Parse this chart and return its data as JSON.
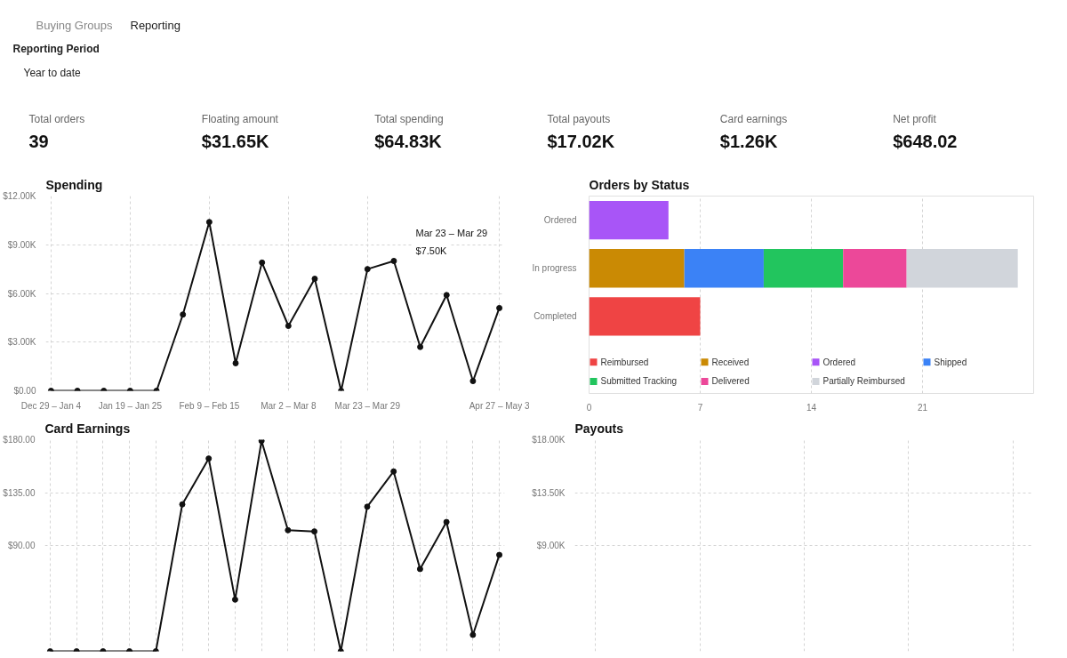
{
  "chart_data": [
    {
      "type": "other",
      "annotations": [
        "Buying Groups",
        "Reporting",
        "Reporting Period",
        "Year to date"
      ],
      "categories": [
        "Total orders",
        "Floating amount",
        "Total spending",
        "Total payouts",
        "Card earnings",
        "Net profit"
      ],
      "value_labels": [
        "39",
        "$31.65K",
        "$64.83K",
        "$17.02K",
        "$1.26K",
        "$648.02"
      ]
    },
    {
      "type": "line",
      "title": "Spending",
      "color": "#111111",
      "marker": "circle",
      "grid": true,
      "categories": [
        "Dec 29 – Jan 4",
        null,
        null,
        "Jan 19 – Jan 25",
        null,
        null,
        "Feb 9 – Feb 15",
        null,
        null,
        "Mar 2 – Mar 8",
        null,
        null,
        "Mar 23 – Mar 29",
        null,
        null,
        null,
        null,
        "Apr 27 – May 3"
      ],
      "values": [
        0,
        0,
        0,
        0,
        0,
        4.7,
        10.4,
        1.7,
        7.9,
        4.0,
        6.9,
        0,
        7.5,
        8.0,
        2.7,
        5.9,
        0.6,
        5.1
      ],
      "ylim": [
        0,
        12
      ],
      "yticks": [
        {
          "value": 0,
          "label": "$0.00"
        },
        {
          "value": 3,
          "label": "$3.00K"
        },
        {
          "value": 6,
          "label": "$6.00K"
        },
        {
          "value": 9,
          "label": "$9.00K"
        },
        {
          "value": 12,
          "label": "$12.00K"
        }
      ],
      "annotations": [
        "Mar 23 – Mar 29",
        "$7.50K"
      ]
    },
    {
      "type": "bar",
      "title": "Orders by Status",
      "orientation": "horizontal",
      "stacked": true,
      "grid": "x",
      "legend": "bottom",
      "categories": [
        "Ordered",
        "In progress",
        "Completed"
      ],
      "series": [
        {
          "name": "Reimbursed",
          "color": "#ef4444",
          "values": [
            null,
            null,
            7
          ]
        },
        {
          "name": "Received",
          "color": "#ca8a04",
          "values": [
            null,
            6,
            null
          ]
        },
        {
          "name": "Ordered",
          "color": "#a855f7",
          "values": [
            5,
            null,
            null
          ]
        },
        {
          "name": "Shipped",
          "color": "#3b82f6",
          "values": [
            null,
            5,
            null
          ]
        },
        {
          "name": "Submitted Tracking",
          "color": "#22c55e",
          "values": [
            null,
            5,
            null
          ]
        },
        {
          "name": "Delivered",
          "color": "#ec4899",
          "values": [
            null,
            4,
            null
          ]
        },
        {
          "name": "Partially Reimbursed",
          "color": "#d1d5db",
          "values": [
            null,
            7,
            null
          ]
        }
      ],
      "xlim": [
        0,
        28
      ],
      "xticks": [
        0,
        7,
        14,
        21
      ]
    },
    {
      "type": "line",
      "title": "Card Earnings",
      "color": "#111111",
      "marker": "circle",
      "grid": true,
      "categories": [
        null,
        null,
        null,
        null,
        null,
        null,
        null,
        null,
        null,
        null,
        null,
        null,
        null,
        null,
        null,
        null,
        null,
        null
      ],
      "values": [
        0,
        0,
        0,
        0,
        0,
        125,
        164,
        44,
        179,
        103,
        102,
        0,
        123,
        153,
        70,
        110,
        14,
        82
      ],
      "ylim": [
        0,
        180
      ],
      "yticks": [
        {
          "value": 90,
          "label": "$90.00"
        },
        {
          "value": 135,
          "label": "$135.00"
        },
        {
          "value": 180,
          "label": "$180.00"
        }
      ]
    },
    {
      "type": "line",
      "title": "Payouts",
      "grid": true,
      "categories": [
        null,
        null,
        null,
        null,
        null
      ],
      "values": [
        null,
        null,
        null,
        null,
        null
      ],
      "ylim": [
        0,
        18
      ],
      "yticks": [
        {
          "value": 9,
          "label": "$9.00K"
        },
        {
          "value": 13.5,
          "label": "$13.50K"
        },
        {
          "value": 18,
          "label": "$18.00K"
        }
      ]
    }
  ]
}
